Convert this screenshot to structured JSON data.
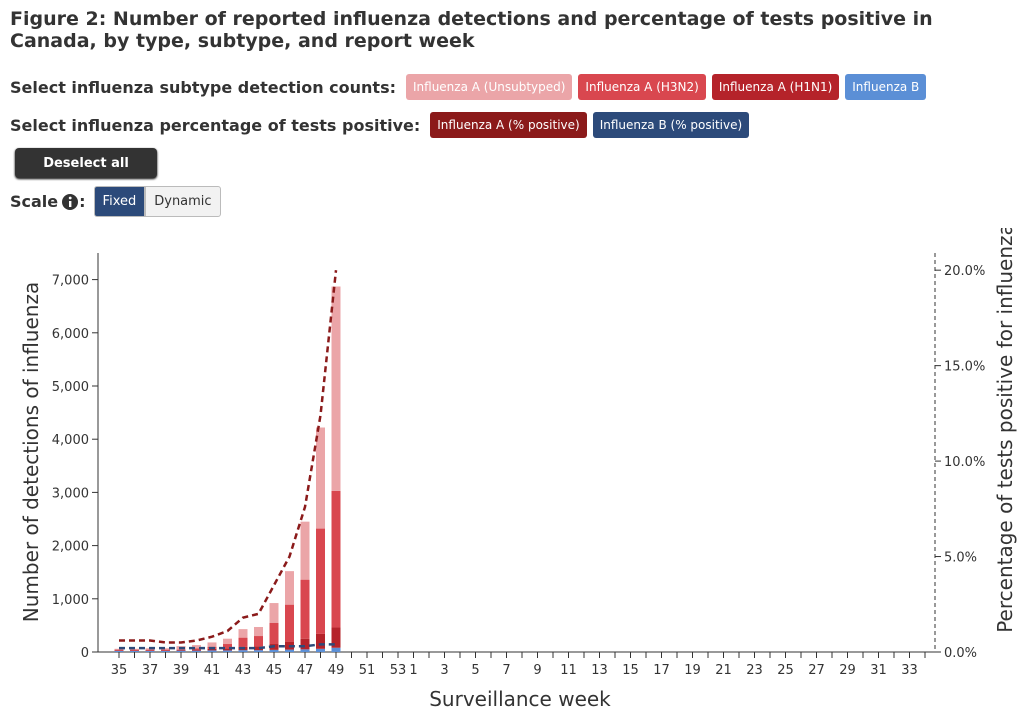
{
  "chart_data": {
    "type": "bar",
    "title": "Figure 2: Number of reported influenza detections and percentage of tests positive in Canada, by type, subtype, and report week",
    "controls": {
      "subtype_label": "Select influenza subtype detection counts:",
      "percent_label": "Select influenza percentage of tests positive:",
      "deselect": "Deselect all",
      "scale_label": "Scale",
      "scale_suffix": ":",
      "fixed": "Fixed",
      "dynamic": "Dynamic"
    },
    "x_label": "Surveillance week",
    "y_label": "Number of detections of influenza",
    "y2_label": "Percentage of tests positive for influenza",
    "categories": [
      "35",
      null,
      "37",
      null,
      "39",
      null,
      "41",
      null,
      "43",
      null,
      "45",
      null,
      "47",
      null,
      "49",
      null,
      "51",
      null,
      "53",
      "1",
      null,
      "3",
      null,
      "5",
      null,
      "7",
      null,
      "9",
      null,
      "11",
      null,
      "13",
      null,
      "15",
      null,
      "17",
      null,
      "19",
      null,
      "21",
      null,
      "23",
      null,
      "25",
      null,
      "27",
      null,
      "29",
      null,
      "31",
      null,
      "33",
      null
    ],
    "series": [
      {
        "name": "Influenza A (Unsubtyped)",
        "color": "#eba5a8",
        "values": [
          15,
          15,
          25,
          25,
          60,
          60,
          80,
          100,
          160,
          170,
          370,
          630,
          1090,
          1900,
          3840,
          null,
          null,
          null,
          null,
          null,
          null,
          null,
          null,
          null,
          null,
          null,
          null,
          null,
          null,
          null,
          null,
          null,
          null,
          null,
          null,
          null,
          null,
          null,
          null,
          null,
          null,
          null,
          null,
          null,
          null,
          null,
          null,
          null,
          null,
          null,
          null,
          null,
          null
        ]
      },
      {
        "name": "Influenza A (H3N2)",
        "color": "#d9474f",
        "values": [
          15,
          15,
          15,
          15,
          10,
          25,
          40,
          80,
          175,
          195,
          400,
          695,
          1110,
          1980,
          2570,
          null,
          null,
          null,
          null,
          null,
          null,
          null,
          null,
          null,
          null,
          null,
          null,
          null,
          null,
          null,
          null,
          null,
          null,
          null,
          null,
          null,
          null,
          null,
          null,
          null,
          null,
          null,
          null,
          null,
          null,
          null,
          null,
          null,
          null,
          null,
          null,
          null,
          null
        ]
      },
      {
        "name": "Influenza A (H1N1)",
        "color": "#b5232a",
        "values": [
          10,
          10,
          10,
          10,
          15,
          20,
          30,
          40,
          60,
          70,
          110,
          150,
          200,
          280,
          380,
          null,
          null,
          null,
          null,
          null,
          null,
          null,
          null,
          null,
          null,
          null,
          null,
          null,
          null,
          null,
          null,
          null,
          null,
          null,
          null,
          null,
          null,
          null,
          null,
          null,
          null,
          null,
          null,
          null,
          null,
          null,
          null,
          null,
          null,
          null,
          null,
          null,
          null
        ]
      },
      {
        "name": "Influenza B",
        "color": "#5b8fd6",
        "values": [
          20,
          20,
          20,
          20,
          25,
          25,
          30,
          30,
          35,
          35,
          40,
          45,
          50,
          60,
          80,
          null,
          null,
          null,
          null,
          null,
          null,
          null,
          null,
          null,
          null,
          null,
          null,
          null,
          null,
          null,
          null,
          null,
          null,
          null,
          null,
          null,
          null,
          null,
          null,
          null,
          null,
          null,
          null,
          null,
          null,
          null,
          null,
          null,
          null,
          null,
          null,
          null,
          null
        ]
      },
      {
        "name": "Influenza A (% positive)",
        "color": "#8b1a1a",
        "axis": "y2",
        "type": "line",
        "values": [
          0.6,
          0.6,
          0.6,
          0.5,
          0.5,
          0.6,
          0.8,
          1.1,
          1.8,
          2.0,
          3.5,
          5.0,
          7.6,
          12.4,
          20.0,
          null,
          null,
          null,
          null,
          null,
          null,
          null,
          null,
          null,
          null,
          null,
          null,
          null,
          null,
          null,
          null,
          null,
          null,
          null,
          null,
          null,
          null,
          null,
          null,
          null,
          null,
          null,
          null,
          null,
          null,
          null,
          null,
          null,
          null,
          null,
          null,
          null,
          null
        ]
      },
      {
        "name": "Influenza B (% positive)",
        "color": "#2c4a7a",
        "axis": "y2",
        "type": "line",
        "values": [
          0.2,
          0.2,
          0.2,
          0.2,
          0.2,
          0.2,
          0.2,
          0.2,
          0.2,
          0.2,
          0.3,
          0.3,
          0.3,
          0.4,
          0.4,
          null,
          null,
          null,
          null,
          null,
          null,
          null,
          null,
          null,
          null,
          null,
          null,
          null,
          null,
          null,
          null,
          null,
          null,
          null,
          null,
          null,
          null,
          null,
          null,
          null,
          null,
          null,
          null,
          null,
          null,
          null,
          null,
          null,
          null,
          null,
          null,
          null,
          null
        ]
      }
    ],
    "ylim": [
      0,
      7500
    ],
    "yticks": [
      0,
      {
        "value": 1000,
        "label": "1,000"
      },
      {
        "value": 2000,
        "label": "2,000"
      },
      {
        "value": 3000,
        "label": "3,000"
      },
      {
        "value": 4000,
        "label": "4,000"
      },
      {
        "value": 5000,
        "label": "5,000"
      },
      {
        "value": 6000,
        "label": "6,000"
      },
      {
        "value": 7000,
        "label": "7,000"
      }
    ],
    "y2lim": [
      0,
      20.9
    ],
    "y2ticks": [
      {
        "value": 0,
        "label": "0.0%"
      },
      {
        "value": 5,
        "label": "5.0%"
      },
      {
        "value": 10,
        "label": "10.0%"
      },
      {
        "value": 15,
        "label": "15.0%"
      },
      {
        "value": 20,
        "label": "20.0%"
      }
    ],
    "grid": false
  }
}
